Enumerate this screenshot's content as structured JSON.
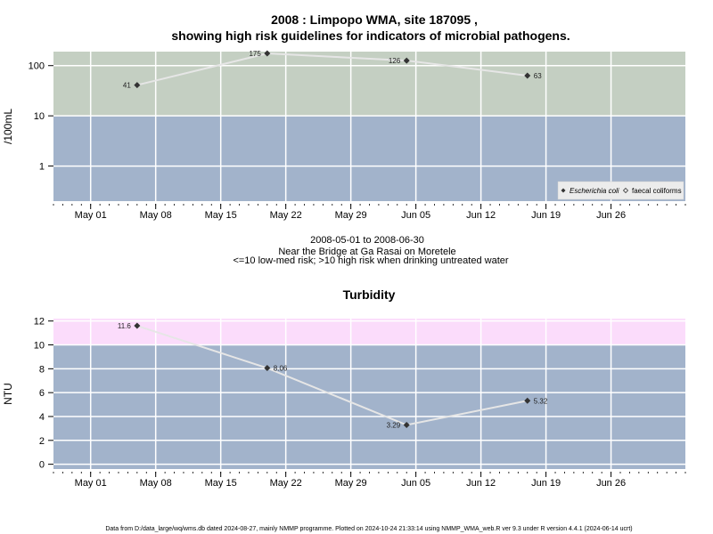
{
  "title_line1": "2008 : Limpopo WMA, site 187095 ,",
  "title_line2": "showing high risk guidelines for indicators of microbial pathogens.",
  "caption": {
    "line1": "2008-05-01 to 2008-06-30",
    "line2": "Near the Bridge at Ga Rasai on Moretele",
    "line3": "<=10 low-med risk; >10 high risk when drinking untreated water"
  },
  "footer": "Data from D:/data_large/wq/wms.db dated 2024-08-27, mainly NMMP programme. Plotted on 2024-10-24 21:33:14 using NMMP_WMA_web.R ver 9.3 under R version 4.4.1 (2024-06-14 ucrt)",
  "colors": {
    "high_risk_micro": "#c4cfc2",
    "low_risk": "#a2b3cb",
    "high_risk_turb": "#fbdcfb",
    "line": "#e6e6e6",
    "grid": "#ffffff",
    "marker": "#333333"
  },
  "chart_data": [
    {
      "type": "line",
      "title": "",
      "ylabel": "/100mL",
      "y_scale": "log",
      "ylim": [
        0.2,
        190
      ],
      "xlim": [
        "2008-04-27",
        "2008-07-04"
      ],
      "threshold": 10,
      "yticks": [
        {
          "value": 1,
          "label": "1"
        },
        {
          "value": 10,
          "label": "10"
        },
        {
          "value": 100,
          "label": "100"
        }
      ],
      "xticks": [
        {
          "date": "2008-05-01",
          "label": "May 01"
        },
        {
          "date": "2008-05-08",
          "label": "May 08"
        },
        {
          "date": "2008-05-15",
          "label": "May 15"
        },
        {
          "date": "2008-05-22",
          "label": "May 22"
        },
        {
          "date": "2008-05-29",
          "label": "May 29"
        },
        {
          "date": "2008-06-05",
          "label": "Jun 05"
        },
        {
          "date": "2008-06-12",
          "label": "Jun 12"
        },
        {
          "date": "2008-06-19",
          "label": "Jun 19"
        },
        {
          "date": "2008-06-26",
          "label": "Jun 26"
        }
      ],
      "legend": {
        "placement": "bottom-right",
        "entries": [
          "Escherichia coli",
          "faecal coliforms"
        ]
      },
      "series": [
        {
          "name": "Escherichia coli",
          "points": [
            {
              "x": "2008-05-06",
              "y": 41,
              "label": "41",
              "side": "left"
            },
            {
              "x": "2008-05-20",
              "y": 175,
              "label": "175",
              "side": "left"
            },
            {
              "x": "2008-06-04",
              "y": 126,
              "label": "126",
              "side": "left"
            },
            {
              "x": "2008-06-17",
              "y": 63,
              "label": "63",
              "side": "right"
            }
          ]
        }
      ]
    },
    {
      "type": "line",
      "title": "Turbidity",
      "ylabel": "NTU",
      "y_scale": "linear",
      "ylim": [
        -0.4,
        12.2
      ],
      "xlim": [
        "2008-04-27",
        "2008-07-04"
      ],
      "threshold": 10,
      "yticks": [
        {
          "value": 0,
          "label": "0"
        },
        {
          "value": 2,
          "label": "2"
        },
        {
          "value": 4,
          "label": "4"
        },
        {
          "value": 6,
          "label": "6"
        },
        {
          "value": 8,
          "label": "8"
        },
        {
          "value": 10,
          "label": "10"
        },
        {
          "value": 12,
          "label": "12"
        }
      ],
      "xticks": [
        {
          "date": "2008-05-01",
          "label": "May 01"
        },
        {
          "date": "2008-05-08",
          "label": "May 08"
        },
        {
          "date": "2008-05-15",
          "label": "May 15"
        },
        {
          "date": "2008-05-22",
          "label": "May 22"
        },
        {
          "date": "2008-05-29",
          "label": "May 29"
        },
        {
          "date": "2008-06-05",
          "label": "Jun 05"
        },
        {
          "date": "2008-06-12",
          "label": "Jun 12"
        },
        {
          "date": "2008-06-19",
          "label": "Jun 19"
        },
        {
          "date": "2008-06-26",
          "label": "Jun 26"
        }
      ],
      "series": [
        {
          "name": "",
          "points": [
            {
              "x": "2008-05-06",
              "y": 11.6,
              "label": "11.6",
              "side": "left"
            },
            {
              "x": "2008-05-20",
              "y": 8.06,
              "label": "8.06",
              "side": "right"
            },
            {
              "x": "2008-06-04",
              "y": 3.29,
              "label": "3.29",
              "side": "left"
            },
            {
              "x": "2008-06-17",
              "y": 5.32,
              "label": "5.32",
              "side": "right"
            }
          ]
        }
      ]
    }
  ]
}
